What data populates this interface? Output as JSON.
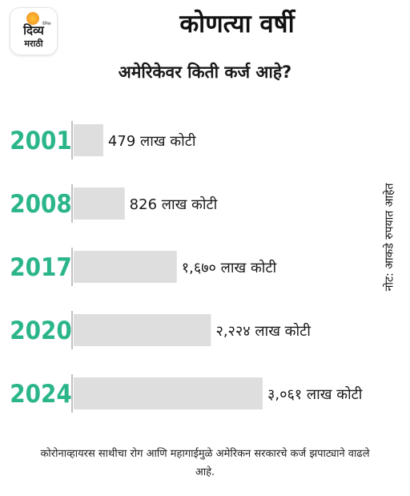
{
  "header": {
    "logo_small": "दैनिक",
    "logo_line1": "दिव्य",
    "logo_line2": "मराठी",
    "title": "कोणत्या वर्षी",
    "subtitle": "अमेरिकेवर किती कर्ज आहे?"
  },
  "note": "नोट: आकडे रुपयात आहेत",
  "footnote": "कोरोनाव्हायरस साथीचा रोग आणि महागाईमुळे अमेरिकन सरकारचे कर्ज झपाट्याने वाढले आहे.",
  "colors": {
    "year": "#2bb58a",
    "bar": "#dedede",
    "axis": "#999999",
    "label": "#1a1a1a"
  },
  "chart_data": {
    "type": "bar",
    "orientation": "horizontal",
    "categories": [
      "2001",
      "2008",
      "2017",
      "2020",
      "2024"
    ],
    "values": [
      479,
      826,
      1670,
      2224,
      3061
    ],
    "value_labels": [
      "479 लाख कोटी",
      "826 लाख कोटी",
      "१,६७० लाख कोटी",
      "२,२२४ लाख कोटी",
      "३,०६१ लाख कोटी"
    ],
    "title": "कोणत्या वर्षी",
    "subtitle": "अमेरिकेवर किती कर्ज आहे?",
    "xlabel": "",
    "ylabel": "",
    "grid": false,
    "legend": "none"
  }
}
